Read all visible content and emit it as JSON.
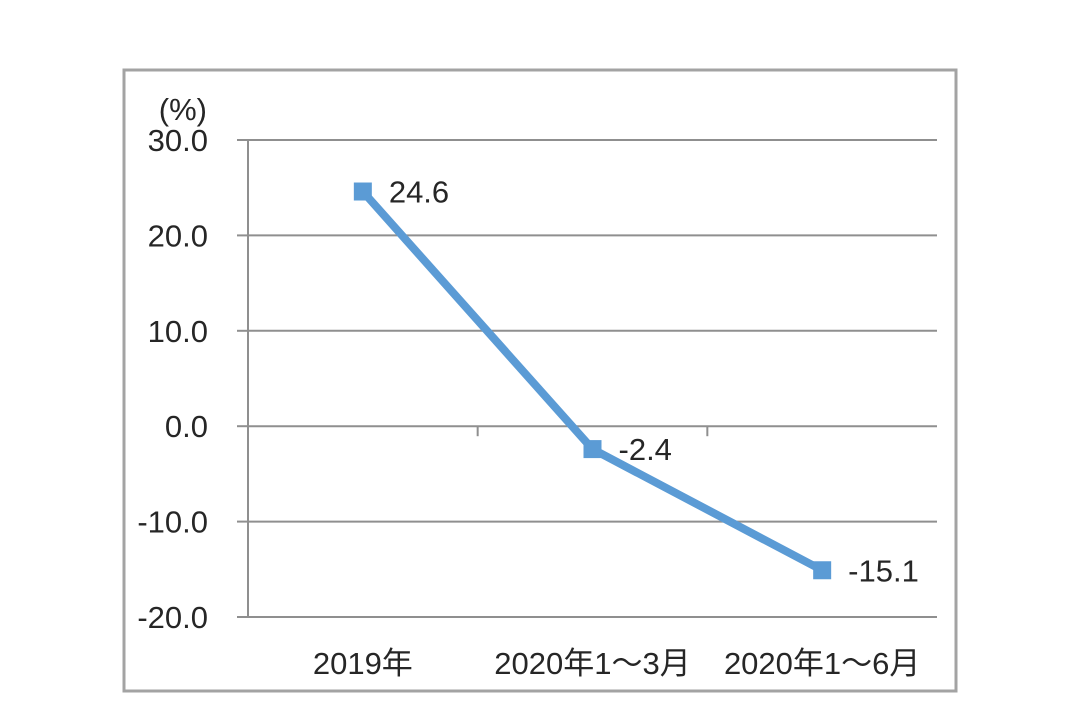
{
  "chart_data": {
    "type": "line",
    "title": "",
    "unit_label": "(%)",
    "categories": [
      "2019年",
      "2020年1～3月",
      "2020年1～6月"
    ],
    "series": [
      {
        "values": [
          24.6,
          -2.4,
          -15.1
        ],
        "labels": [
          "24.6",
          "-2.4",
          "-15.1"
        ],
        "color": "#5B9BD5",
        "marker": "square"
      }
    ],
    "ylim": [
      -20,
      30
    ],
    "yticks": [
      30.0,
      20.0,
      10.0,
      0.0,
      -10.0,
      -20.0
    ],
    "ytick_labels": [
      "30.0",
      "20.0",
      "10.0",
      "0.0",
      "-10.0",
      "-20.0"
    ],
    "grid": true,
    "legend": "none",
    "gridline_color": "#8f8f8f",
    "axis_color": "#8f8f8f",
    "border_color": "#a3a3a3",
    "text_color": "#262626",
    "background": "#ffffff"
  }
}
